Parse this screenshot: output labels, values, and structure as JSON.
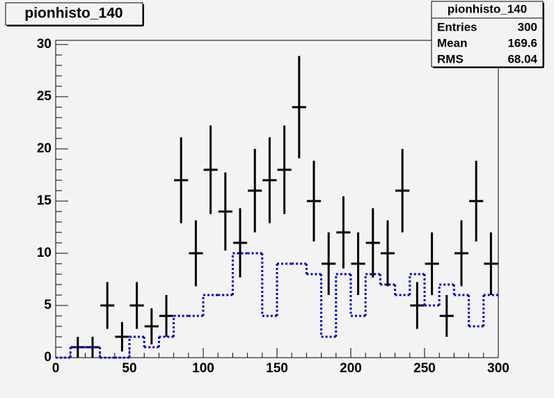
{
  "chart_data": {
    "type": "histogram",
    "title": "pionhisto_140",
    "bins": [
      0,
      10,
      20,
      30,
      40,
      50,
      60,
      70,
      80,
      90,
      100,
      110,
      120,
      130,
      140,
      150,
      160,
      170,
      180,
      190,
      200,
      210,
      220,
      230,
      240,
      250,
      260,
      270,
      280,
      290,
      300
    ],
    "series": [
      {
        "style": "markers",
        "color": "#000000",
        "values": [
          0,
          1,
          1,
          5,
          2,
          5,
          3,
          4,
          17,
          10,
          18,
          14,
          11,
          16,
          17,
          18,
          24,
          15,
          9,
          12,
          9,
          11,
          10,
          16,
          5,
          9,
          4,
          10,
          15,
          9
        ],
        "errors": [
          0,
          1,
          1,
          2.24,
          1.41,
          2.24,
          1.73,
          2,
          4.12,
          3.16,
          4.24,
          3.74,
          3.32,
          4,
          4.12,
          4.24,
          4.9,
          3.87,
          3,
          3.46,
          3,
          3.32,
          3.16,
          4,
          2.24,
          3,
          2,
          3.16,
          3.87,
          3
        ]
      },
      {
        "style": "dotted-step",
        "color": "#0000cc",
        "values": [
          0,
          1,
          1,
          0,
          0,
          2,
          1,
          2,
          4,
          4,
          6,
          6,
          10,
          10,
          4,
          9,
          9,
          8,
          2,
          8,
          4,
          8,
          7,
          6,
          8,
          5,
          7,
          6,
          3,
          6
        ]
      }
    ],
    "xlim": [
      0,
      300
    ],
    "ylim": [
      0,
      30.4
    ],
    "xticks": [
      0,
      50,
      100,
      150,
      200,
      250,
      300
    ],
    "yticks": [
      0,
      5,
      10,
      15,
      20,
      25,
      30
    ],
    "stats": {
      "title": "pionhisto_140",
      "rows": [
        {
          "label": "Entries",
          "value": 300
        },
        {
          "label": "Mean",
          "value": 169.6
        },
        {
          "label": "RMS",
          "value": 68.04
        }
      ]
    }
  }
}
